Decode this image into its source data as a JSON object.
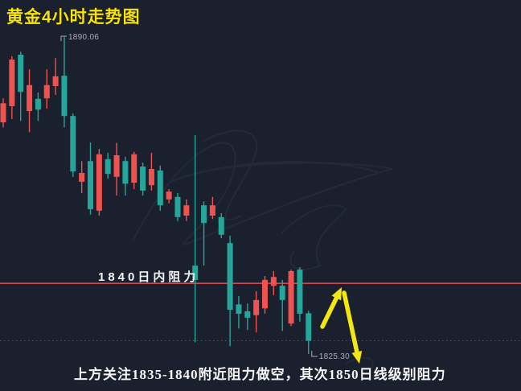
{
  "window": {
    "title": "黄金4小时走势图"
  },
  "chart_data": {
    "type": "candlestick",
    "title": "黄金4小时走势图",
    "instrument": "黄金 (Gold)",
    "timeframe": "4小时",
    "grid": false,
    "price_axis_visible": false,
    "ylim": [
      1825.3,
      1890.06
    ],
    "color_convention": "CN convention: red = up candle, teal = down candle",
    "colors": {
      "bullish": "#ef5350",
      "bearish": "#26a69a",
      "background": "#1a202e"
    },
    "candles": [
      {
        "o": 1872.5,
        "h": 1877.4,
        "l": 1871.5,
        "c": 1876.4
      },
      {
        "o": 1875.8,
        "h": 1886.0,
        "l": 1873.2,
        "c": 1885.3
      },
      {
        "o": 1886.3,
        "h": 1886.9,
        "l": 1872.8,
        "c": 1878.7
      },
      {
        "o": 1874.8,
        "h": 1883.3,
        "l": 1870.5,
        "c": 1880.1
      },
      {
        "o": 1877.3,
        "h": 1878.6,
        "l": 1872.8,
        "c": 1875.1
      },
      {
        "o": 1877.4,
        "h": 1883.3,
        "l": 1875.3,
        "c": 1880.1
      },
      {
        "o": 1879.9,
        "h": 1885.6,
        "l": 1878.1,
        "c": 1881.9
      },
      {
        "o": 1882.0,
        "h": 1890.06,
        "l": 1871.5,
        "c": 1873.8
      },
      {
        "o": 1873.8,
        "h": 1874.3,
        "l": 1861.4,
        "c": 1862.5
      },
      {
        "o": 1860.4,
        "h": 1864.6,
        "l": 1858.1,
        "c": 1862.2
      },
      {
        "o": 1864.6,
        "h": 1868.4,
        "l": 1853.7,
        "c": 1854.8
      },
      {
        "o": 1854.5,
        "h": 1867.1,
        "l": 1853.5,
        "c": 1866.0
      },
      {
        "o": 1865.0,
        "h": 1866.3,
        "l": 1861.0,
        "c": 1862.0
      },
      {
        "o": 1861.4,
        "h": 1868.3,
        "l": 1857.6,
        "c": 1865.8
      },
      {
        "o": 1864.6,
        "h": 1865.5,
        "l": 1857.6,
        "c": 1860.0
      },
      {
        "o": 1860.2,
        "h": 1866.5,
        "l": 1858.9,
        "c": 1866.0
      },
      {
        "o": 1863.5,
        "h": 1864.3,
        "l": 1857.6,
        "c": 1858.6
      },
      {
        "o": 1859.7,
        "h": 1866.3,
        "l": 1858.6,
        "c": 1863.0
      },
      {
        "o": 1862.7,
        "h": 1863.7,
        "l": 1854.5,
        "c": 1855.6
      },
      {
        "o": 1856.8,
        "h": 1858.9,
        "l": 1856.0,
        "c": 1858.4
      },
      {
        "o": 1857.3,
        "h": 1858.1,
        "l": 1852.4,
        "c": 1853.2
      },
      {
        "o": 1853.5,
        "h": 1856.8,
        "l": 1852.4,
        "c": 1855.6
      },
      {
        "o": 1843.3,
        "h": 1869.9,
        "l": 1827.7,
        "c": 1840.4
      },
      {
        "o": 1855.6,
        "h": 1856.4,
        "l": 1843.3,
        "c": 1852.0
      },
      {
        "o": 1853.5,
        "h": 1857.3,
        "l": 1852.8,
        "c": 1855.6
      },
      {
        "o": 1853.2,
        "h": 1854.0,
        "l": 1848.9,
        "c": 1849.6
      },
      {
        "o": 1847.9,
        "h": 1849.4,
        "l": 1826.9,
        "c": 1834.3
      },
      {
        "o": 1835.4,
        "h": 1837.1,
        "l": 1830.5,
        "c": 1833.5
      },
      {
        "o": 1834.0,
        "h": 1835.6,
        "l": 1830.2,
        "c": 1832.7
      },
      {
        "o": 1833.2,
        "h": 1838.1,
        "l": 1829.7,
        "c": 1836.3
      },
      {
        "o": 1834.6,
        "h": 1841.2,
        "l": 1833.5,
        "c": 1840.4
      },
      {
        "o": 1839.2,
        "h": 1842.2,
        "l": 1837.3,
        "c": 1841.0
      },
      {
        "o": 1839.2,
        "h": 1840.4,
        "l": 1830.0,
        "c": 1836.3
      },
      {
        "o": 1831.5,
        "h": 1842.5,
        "l": 1831.0,
        "c": 1842.2
      },
      {
        "o": 1842.5,
        "h": 1843.0,
        "l": 1831.9,
        "c": 1833.5
      },
      {
        "o": 1833.6,
        "h": 1834.1,
        "l": 1825.3,
        "c": 1828.0
      }
    ],
    "high_point_label": {
      "text": "1890.06",
      "value": 1890.06,
      "candle_index": 7
    },
    "low_point_label": {
      "text": "1825.30",
      "value": 1825.3,
      "candle_index": 35
    },
    "horizontal_lines": [
      {
        "name": "resistance-1840",
        "price": 1839.7,
        "style": "solid",
        "color": "#cf4a52",
        "label": "1840日内阻力"
      },
      {
        "name": "current-price",
        "price": 1828.0,
        "style": "dotted",
        "color": "rgba(42,166,154,0.55)",
        "label": ""
      }
    ]
  },
  "annotations": {
    "resistance_label": "1840日内阻力",
    "high_label": "1890.06",
    "low_label": "1825.30",
    "bottom_note": "上方关注1835-1840附近阻力做空，其次1850日线级别阻力",
    "arrows": [
      {
        "name": "up-arrow",
        "direction": "up",
        "color": "#f3e711",
        "tail": [
          401,
          406
        ],
        "tip": [
          425,
          357
        ]
      },
      {
        "name": "down-arrow",
        "direction": "down",
        "color": "#f3e711",
        "tail": [
          428,
          364
        ],
        "tip": [
          447,
          452
        ]
      }
    ]
  },
  "theme": {
    "background": "#1a202e",
    "title_color": "#f7e400",
    "text_color": "#f5f5f5",
    "price_label_color": "#a9aeb8",
    "annotation_arrow_color": "#f3e711"
  }
}
